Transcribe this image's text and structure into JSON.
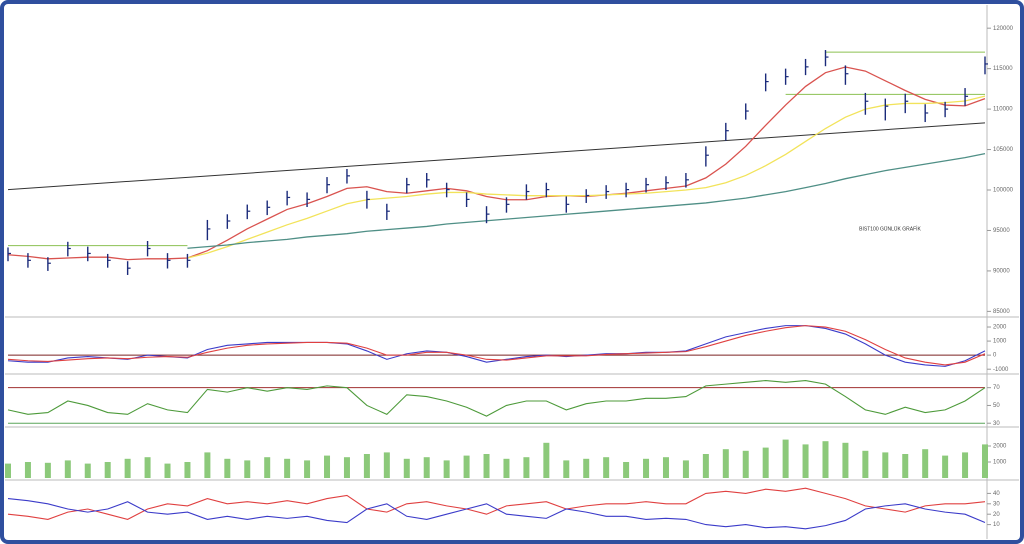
{
  "chart_data": [
    {
      "type": "ohlc",
      "annotation": "BIST100 GÜNLÜK GRAFİK",
      "categories": [
        null,
        null,
        null,
        null,
        null,
        null,
        null,
        null,
        null,
        null,
        null,
        null,
        null,
        null,
        null,
        null,
        null,
        null,
        null,
        null,
        null,
        null,
        null,
        null,
        null,
        null,
        null,
        null,
        null,
        null,
        null,
        null,
        null,
        null,
        null,
        null,
        null,
        null,
        null,
        null,
        null,
        null,
        null,
        null,
        null,
        null,
        null,
        null,
        null,
        null
      ],
      "ylim": [
        84800,
        122000
      ],
      "yticks": [
        85000,
        90000,
        95000,
        100000,
        105000,
        110000,
        115000,
        120000
      ],
      "color": "#1a2a7a",
      "high": [
        92900,
        92200,
        91700,
        93600,
        93000,
        92100,
        91200,
        93700,
        92200,
        92100,
        96300,
        97000,
        98200,
        98700,
        99900,
        99700,
        101600,
        102600,
        99900,
        98300,
        101500,
        102100,
        100900,
        99700,
        98000,
        99100,
        100700,
        100900,
        99200,
        100100,
        100600,
        100900,
        101500,
        101700,
        102100,
        105400,
        108300,
        110700,
        114400,
        115000,
        116200,
        117300,
        115400,
        112000,
        111300,
        111900,
        110600,
        110900,
        112600,
        116500
      ],
      "low": [
        91200,
        90400,
        90000,
        91800,
        91200,
        90400,
        89500,
        91800,
        90300,
        90400,
        93800,
        95200,
        96400,
        96900,
        98100,
        97900,
        99600,
        100800,
        97700,
        96300,
        99600,
        100300,
        99100,
        97900,
        95900,
        97200,
        98800,
        99100,
        97200,
        98400,
        98900,
        99100,
        99700,
        100000,
        100300,
        102900,
        106100,
        108700,
        112200,
        113000,
        114200,
        115300,
        113000,
        109300,
        108600,
        109500,
        108400,
        109000,
        110400,
        114300
      ],
      "close": [
        92160,
        91310,
        90950,
        92770,
        92160,
        91310,
        90340,
        92770,
        91310,
        91310,
        95190,
        96170,
        97380,
        97860,
        99080,
        98840,
        100660,
        101750,
        98840,
        97380,
        100660,
        101260,
        100050,
        98840,
        97020,
        98230,
        99810,
        100050,
        98230,
        99320,
        99810,
        100050,
        100660,
        100900,
        101260,
        104300,
        107330,
        109760,
        113400,
        114010,
        115220,
        116430,
        114370,
        110970,
        110360,
        110970,
        109520,
        110000,
        111580,
        115580
      ],
      "overlays": [
        {
          "color": "#d9534f",
          "values": [
            92000,
            91800,
            91500,
            91600,
            91700,
            91700,
            91400,
            91500,
            91500,
            91600,
            92500,
            93800,
            95200,
            96400,
            97600,
            98300,
            99200,
            100200,
            100400,
            99800,
            99600,
            99900,
            100200,
            99900,
            99200,
            98800,
            98800,
            99200,
            99300,
            99200,
            99400,
            99600,
            99900,
            100200,
            100500,
            101500,
            103200,
            105400,
            108000,
            110500,
            112800,
            114500,
            115200,
            114700,
            113500,
            112300,
            111200,
            110500,
            110400,
            111300
          ]
        },
        {
          "color": "#f2e35a",
          "values": [
            null,
            null,
            null,
            null,
            null,
            null,
            null,
            null,
            null,
            91600,
            92200,
            93000,
            93900,
            94800,
            95700,
            96500,
            97400,
            98300,
            98800,
            99000,
            99200,
            99500,
            99700,
            99700,
            99500,
            99400,
            99300,
            99300,
            99300,
            99300,
            99400,
            99500,
            99600,
            99800,
            100000,
            100300,
            100900,
            101800,
            103000,
            104400,
            106000,
            107600,
            109000,
            110000,
            110500,
            110700,
            110700,
            110800,
            111000,
            111600
          ]
        },
        {
          "color": "#4f8f86",
          "values": [
            null,
            null,
            null,
            null,
            null,
            null,
            null,
            null,
            null,
            92800,
            93000,
            93200,
            93500,
            93700,
            93900,
            94200,
            94400,
            94600,
            94900,
            95100,
            95300,
            95500,
            95800,
            96000,
            96200,
            96400,
            96600,
            96800,
            97000,
            97200,
            97400,
            97600,
            97800,
            98000,
            98200,
            98400,
            98700,
            99000,
            99400,
            99800,
            100300,
            100800,
            101400,
            101900,
            102400,
            102800,
            103200,
            103600,
            104000,
            104500
          ]
        }
      ],
      "lines": [
        {
          "x": [
            0,
            49
          ],
          "values": [
            100050,
            108300
          ],
          "color": "#333333"
        },
        {
          "x": [
            0,
            9
          ],
          "values": [
            93130,
            93130
          ],
          "color": "#8cc152"
        },
        {
          "x": [
            39,
            49
          ],
          "values": [
            111820,
            111820
          ],
          "color": "#8cc152"
        },
        {
          "x": [
            41,
            49
          ],
          "values": [
            117040,
            117040
          ],
          "color": "#8cc152"
        }
      ]
    },
    {
      "type": "line",
      "ylim": [
        -1200,
        2500
      ],
      "yticks": [
        -1000,
        0,
        1000,
        2000
      ],
      "ref_lines": [
        {
          "value": 0,
          "color": "#7a2020"
        }
      ],
      "series": [
        {
          "color": "#3b3bc9",
          "values": [
            -400,
            -500,
            -500,
            -200,
            -100,
            -200,
            -300,
            0,
            -100,
            -200,
            400,
            700,
            800,
            900,
            900,
            900,
            900,
            800,
            300,
            -300,
            100,
            300,
            200,
            -100,
            -500,
            -300,
            -100,
            0,
            -100,
            0,
            100,
            100,
            200,
            200,
            300,
            800,
            1300,
            1600,
            1900,
            2100,
            2100,
            1900,
            1500,
            800,
            0,
            -500,
            -700,
            -800,
            -400,
            300
          ]
        },
        {
          "color": "#e04040",
          "values": [
            -300,
            -400,
            -450,
            -350,
            -250,
            -200,
            -250,
            -150,
            -100,
            -150,
            200,
            500,
            700,
            800,
            850,
            900,
            900,
            850,
            500,
            0,
            0,
            200,
            200,
            0,
            -300,
            -350,
            -200,
            -50,
            -50,
            -50,
            50,
            100,
            150,
            200,
            250,
            600,
            1000,
            1400,
            1700,
            1950,
            2100,
            2000,
            1700,
            1100,
            400,
            -200,
            -500,
            -700,
            -500,
            100
          ]
        }
      ]
    },
    {
      "type": "line",
      "ylim": [
        28,
        82
      ],
      "yticks": [
        30,
        50,
        70
      ],
      "ref_lines": [
        {
          "value": 70,
          "color": "#a03030"
        },
        {
          "value": 30,
          "color": "#5aa55a"
        }
      ],
      "series": [
        {
          "color": "#4d9a3a",
          "values": [
            45,
            40,
            42,
            55,
            50,
            42,
            40,
            52,
            45,
            42,
            68,
            65,
            70,
            66,
            70,
            68,
            72,
            70,
            50,
            40,
            62,
            60,
            55,
            48,
            38,
            50,
            55,
            55,
            45,
            52,
            55,
            55,
            58,
            58,
            60,
            72,
            74,
            76,
            78,
            76,
            78,
            74,
            60,
            45,
            40,
            48,
            42,
            45,
            55,
            70
          ]
        }
      ]
    },
    {
      "type": "bar",
      "ylim": [
        0,
        3000
      ],
      "yticks": [
        1000,
        2000
      ],
      "color": "#8cc97a",
      "values": [
        900,
        1000,
        950,
        1100,
        900,
        1000,
        1200,
        1300,
        900,
        1000,
        1600,
        1200,
        1100,
        1300,
        1200,
        1100,
        1400,
        1300,
        1500,
        1600,
        1200,
        1300,
        1100,
        1400,
        1500,
        1200,
        1300,
        2200,
        1100,
        1200,
        1300,
        1000,
        1200,
        1300,
        1100,
        1500,
        1800,
        1700,
        1900,
        2400,
        2100,
        2300,
        2200,
        1700,
        1600,
        1500,
        1800,
        1400,
        1600,
        2100
      ]
    },
    {
      "type": "line",
      "ylim": [
        0,
        50
      ],
      "yticks": [
        10,
        20,
        30,
        40
      ],
      "series": [
        {
          "color": "#e04040",
          "values": [
            20,
            18,
            15,
            22,
            25,
            20,
            15,
            25,
            30,
            28,
            35,
            30,
            32,
            30,
            33,
            30,
            35,
            38,
            25,
            22,
            30,
            32,
            28,
            25,
            20,
            28,
            30,
            32,
            25,
            28,
            30,
            30,
            32,
            30,
            30,
            40,
            42,
            40,
            44,
            42,
            45,
            40,
            35,
            28,
            25,
            22,
            28,
            30,
            30,
            32
          ]
        },
        {
          "color": "#3b3bc9",
          "values": [
            35,
            33,
            30,
            25,
            22,
            25,
            32,
            22,
            20,
            22,
            15,
            18,
            15,
            18,
            16,
            18,
            14,
            12,
            25,
            30,
            18,
            15,
            20,
            25,
            30,
            20,
            18,
            16,
            25,
            22,
            18,
            18,
            15,
            16,
            15,
            10,
            8,
            10,
            7,
            8,
            6,
            9,
            14,
            25,
            28,
            30,
            25,
            22,
            20,
            12
          ]
        }
      ]
    }
  ]
}
